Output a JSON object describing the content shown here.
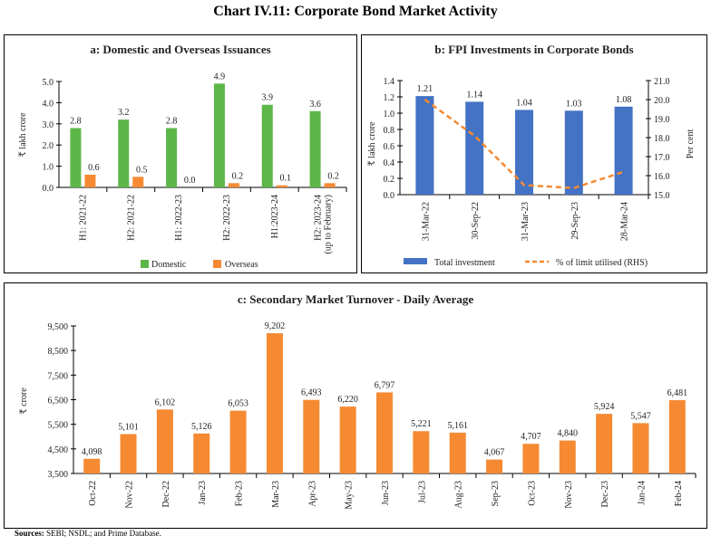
{
  "title": "Chart IV.11: Corporate Bond Market Activity",
  "sources_label": "Sources:",
  "sources_text": "SEBI; NSDL; and Prime Database.",
  "colors": {
    "domestic": "#5cb648",
    "overseas": "#f58a33",
    "fpi_bar": "#4472c4",
    "fpi_line": "#f58a33",
    "turnover": "#f58a33"
  },
  "chart_data": [
    {
      "type": "bar",
      "title": "a: Domestic and Overseas Issuances",
      "ylabel": "₹ lakh crore",
      "ylim": [
        0,
        5
      ],
      "yticks": [
        "0.0",
        "1.0",
        "2.0",
        "3.0",
        "4.0",
        "5.0"
      ],
      "categories": [
        "H1: 2021-22",
        "H2: 2021-22",
        "H1: 2022-23",
        "H2: 2022-23",
        "H1:2023-24",
        "H2: 2023-24|(up to February)"
      ],
      "series": [
        {
          "name": "Domestic",
          "values": [
            2.8,
            3.2,
            2.8,
            4.9,
            3.9,
            3.6
          ],
          "labels": [
            "2.8",
            "3.2",
            "2.8",
            "4.9",
            "3.9",
            "3.6"
          ]
        },
        {
          "name": "Overseas",
          "values": [
            0.6,
            0.5,
            0.0,
            0.2,
            0.1,
            0.2
          ],
          "labels": [
            "0.6",
            "0.5",
            "0.0",
            "0.2",
            "0.1",
            "0.2"
          ]
        }
      ],
      "legend": "bottom"
    },
    {
      "type": "bar+line",
      "title": "b: FPI Investments in Corporate Bonds",
      "ylabel": "₹ lakh crore",
      "y2label": "Per cent",
      "ylim": [
        0,
        1.4
      ],
      "y2lim": [
        15,
        21
      ],
      "yticks": [
        "0.0",
        "0.2",
        "0.4",
        "0.6",
        "0.8",
        "1.0",
        "1.2",
        "1.4"
      ],
      "y2ticks": [
        "15.0",
        "16.0",
        "17.0",
        "18.0",
        "19.0",
        "20.0",
        "21.0"
      ],
      "categories": [
        "31-Mar-22",
        "30-Sep-22",
        "31-Mar-23",
        "29-Sep-23",
        "28-Mar-24"
      ],
      "series": [
        {
          "name": "Total investment",
          "values": [
            1.21,
            1.14,
            1.04,
            1.03,
            1.08
          ],
          "labels": [
            "1.21",
            "1.14",
            "1.04",
            "1.03",
            "1.08"
          ]
        },
        {
          "name": "% of limit utilised (RHS)",
          "values": [
            20.0,
            18.1,
            15.5,
            15.35,
            16.2
          ],
          "axis": "right",
          "style": "dashed"
        }
      ],
      "legend": "bottom"
    },
    {
      "type": "bar",
      "title": "c: Secondary Market Turnover - Daily Average",
      "ylabel": "₹ crore",
      "ylim": [
        3500,
        9500
      ],
      "yticks": [
        "3,500",
        "4,500",
        "5,500",
        "6,500",
        "7,500",
        "8,500",
        "9,500"
      ],
      "categories": [
        "Oct-22",
        "Nov-22",
        "Dec-22",
        "Jan-23",
        "Feb-23",
        "Mar-23",
        "Apr-23",
        "May-23",
        "Jun-23",
        "Jul-23",
        "Aug-23",
        "Sep-23",
        "Oct-23",
        "Nov-23",
        "Dec-23",
        "Jan-24",
        "Feb-24"
      ],
      "values": [
        4098,
        5101,
        6102,
        5126,
        6053,
        9202,
        6493,
        6220,
        6797,
        5221,
        5161,
        4067,
        4707,
        4840,
        5924,
        5547,
        6481
      ],
      "labels": [
        "4,098",
        "5,101",
        "6,102",
        "5,126",
        "6,053",
        "9,202",
        "6,493",
        "6,220",
        "6,797",
        "5,221",
        "5,161",
        "4,067",
        "4,707",
        "4,840",
        "5,924",
        "5,547",
        "6,481"
      ]
    }
  ]
}
